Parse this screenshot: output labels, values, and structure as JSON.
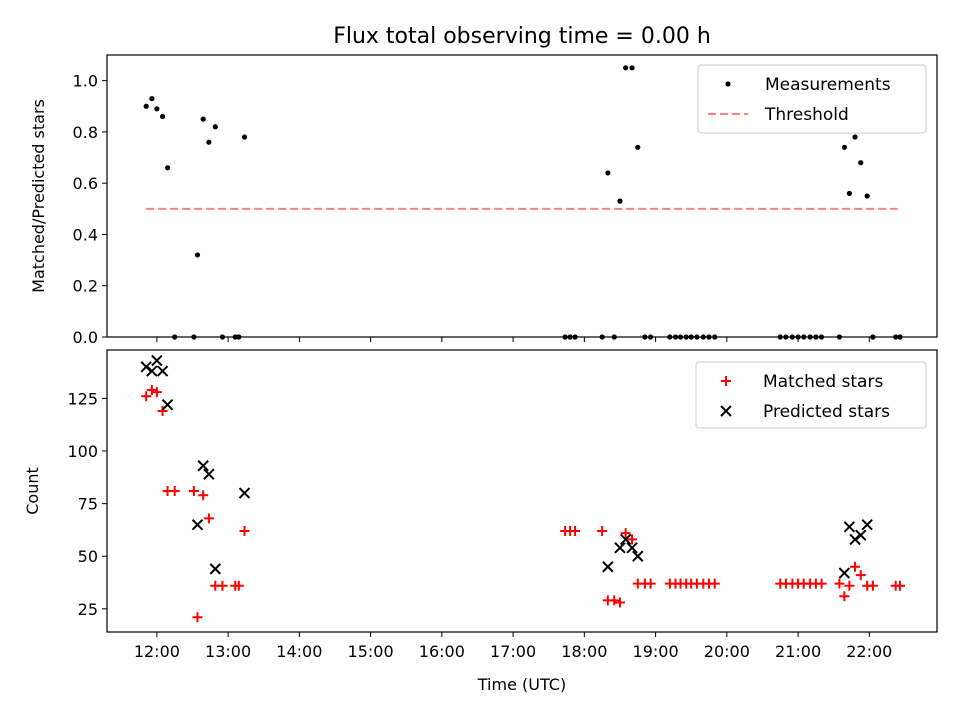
{
  "title": "Flux total observing time = 0.00 h",
  "chart_data": [
    {
      "type": "scatter",
      "ylabel": "Matched/Predicted stars",
      "xlim": [
        11.3,
        22.95
      ],
      "ylim": [
        0,
        1.1
      ],
      "yticks": [
        0.0,
        0.2,
        0.4,
        0.6,
        0.8,
        1.0
      ],
      "ytick_labels": [
        "0.0",
        "0.2",
        "0.4",
        "0.6",
        "0.8",
        "1.0"
      ],
      "legend": {
        "placement": "top-right",
        "entries": [
          "Measurements",
          "Threshold"
        ]
      },
      "threshold": {
        "name": "Threshold",
        "value": 0.5,
        "x_range": [
          11.85,
          22.4
        ],
        "color": "#ff8080"
      },
      "series": [
        {
          "name": "Measurements",
          "marker": "dot",
          "color": "#000000",
          "points": [
            [
              11.85,
              0.9
            ],
            [
              11.93,
              0.93
            ],
            [
              12.0,
              0.89
            ],
            [
              12.08,
              0.86
            ],
            [
              12.15,
              0.66
            ],
            [
              12.25,
              0.0
            ],
            [
              12.52,
              0.0
            ],
            [
              12.57,
              0.32
            ],
            [
              12.65,
              0.85
            ],
            [
              12.73,
              0.76
            ],
            [
              12.82,
              0.82
            ],
            [
              12.92,
              0.0
            ],
            [
              13.1,
              0.0
            ],
            [
              13.15,
              0.0
            ],
            [
              13.23,
              0.78
            ],
            [
              17.73,
              0.0
            ],
            [
              17.8,
              0.0
            ],
            [
              17.87,
              0.0
            ],
            [
              18.25,
              0.0
            ],
            [
              18.33,
              0.64
            ],
            [
              18.42,
              0.0
            ],
            [
              18.5,
              0.53
            ],
            [
              18.58,
              1.05
            ],
            [
              18.67,
              1.05
            ],
            [
              18.75,
              0.74
            ],
            [
              18.85,
              0.0
            ],
            [
              18.93,
              0.0
            ],
            [
              19.2,
              0.0
            ],
            [
              19.28,
              0.0
            ],
            [
              19.35,
              0.0
            ],
            [
              19.43,
              0.0
            ],
            [
              19.5,
              0.0
            ],
            [
              19.58,
              0.0
            ],
            [
              19.67,
              0.0
            ],
            [
              19.75,
              0.0
            ],
            [
              19.83,
              0.0
            ],
            [
              20.75,
              0.0
            ],
            [
              20.83,
              0.0
            ],
            [
              20.92,
              0.0
            ],
            [
              21.0,
              0.0
            ],
            [
              21.08,
              0.0
            ],
            [
              21.17,
              0.0
            ],
            [
              21.25,
              0.0
            ],
            [
              21.33,
              0.0
            ],
            [
              21.58,
              0.0
            ],
            [
              21.65,
              0.74
            ],
            [
              21.72,
              0.56
            ],
            [
              21.8,
              0.78
            ],
            [
              21.88,
              0.68
            ],
            [
              21.97,
              0.55
            ],
            [
              22.05,
              0.0
            ],
            [
              22.37,
              0.0
            ],
            [
              22.43,
              0.0
            ]
          ]
        }
      ]
    },
    {
      "type": "scatter",
      "xlabel": "Time (UTC)",
      "ylabel": "Count",
      "xlim": [
        11.3,
        22.95
      ],
      "ylim": [
        14,
        148
      ],
      "xticks": [
        12,
        13,
        14,
        15,
        16,
        17,
        18,
        19,
        20,
        21,
        22
      ],
      "xtick_labels": [
        "12:00",
        "13:00",
        "14:00",
        "15:00",
        "16:00",
        "17:00",
        "18:00",
        "19:00",
        "20:00",
        "21:00",
        "22:00"
      ],
      "yticks": [
        25,
        50,
        75,
        100,
        125
      ],
      "ytick_labels": [
        "25",
        "50",
        "75",
        "100",
        "125"
      ],
      "legend": {
        "placement": "top-right",
        "entries": [
          "Matched stars",
          "Predicted stars"
        ]
      },
      "series": [
        {
          "name": "Matched stars",
          "marker": "plus",
          "color": "#ff0000",
          "points": [
            [
              11.85,
              126
            ],
            [
              11.93,
              129
            ],
            [
              12.0,
              128
            ],
            [
              12.08,
              119
            ],
            [
              12.15,
              81
            ],
            [
              12.25,
              81
            ],
            [
              12.52,
              81
            ],
            [
              12.57,
              21
            ],
            [
              12.65,
              79
            ],
            [
              12.73,
              68
            ],
            [
              12.82,
              36
            ],
            [
              12.92,
              36
            ],
            [
              13.1,
              36
            ],
            [
              13.15,
              36
            ],
            [
              13.23,
              62
            ],
            [
              17.73,
              62
            ],
            [
              17.8,
              62
            ],
            [
              17.87,
              62
            ],
            [
              18.25,
              62
            ],
            [
              18.33,
              29
            ],
            [
              18.42,
              29
            ],
            [
              18.5,
              28
            ],
            [
              18.58,
              61
            ],
            [
              18.67,
              58
            ],
            [
              18.75,
              37
            ],
            [
              18.85,
              37
            ],
            [
              18.93,
              37
            ],
            [
              19.2,
              37
            ],
            [
              19.28,
              37
            ],
            [
              19.35,
              37
            ],
            [
              19.43,
              37
            ],
            [
              19.5,
              37
            ],
            [
              19.58,
              37
            ],
            [
              19.67,
              37
            ],
            [
              19.75,
              37
            ],
            [
              19.83,
              37
            ],
            [
              20.75,
              37
            ],
            [
              20.83,
              37
            ],
            [
              20.92,
              37
            ],
            [
              21.0,
              37
            ],
            [
              21.08,
              37
            ],
            [
              21.17,
              37
            ],
            [
              21.25,
              37
            ],
            [
              21.33,
              37
            ],
            [
              21.58,
              37
            ],
            [
              21.65,
              31
            ],
            [
              21.72,
              36
            ],
            [
              21.8,
              45
            ],
            [
              21.88,
              41
            ],
            [
              21.97,
              36
            ],
            [
              22.05,
              36
            ],
            [
              22.37,
              36
            ],
            [
              22.43,
              36
            ]
          ]
        },
        {
          "name": "Predicted stars",
          "marker": "x",
          "color": "#000000",
          "points": [
            [
              11.85,
              140
            ],
            [
              11.93,
              138
            ],
            [
              12.0,
              143
            ],
            [
              12.08,
              138
            ],
            [
              12.15,
              122
            ],
            [
              12.57,
              65
            ],
            [
              12.65,
              93
            ],
            [
              12.73,
              89
            ],
            [
              12.82,
              44
            ],
            [
              13.23,
              80
            ],
            [
              18.33,
              45
            ],
            [
              18.5,
              54
            ],
            [
              18.58,
              58
            ],
            [
              18.67,
              54
            ],
            [
              18.75,
              50
            ],
            [
              21.65,
              42
            ],
            [
              21.72,
              64
            ],
            [
              21.8,
              58
            ],
            [
              21.88,
              60
            ],
            [
              21.97,
              65
            ]
          ]
        }
      ]
    }
  ]
}
